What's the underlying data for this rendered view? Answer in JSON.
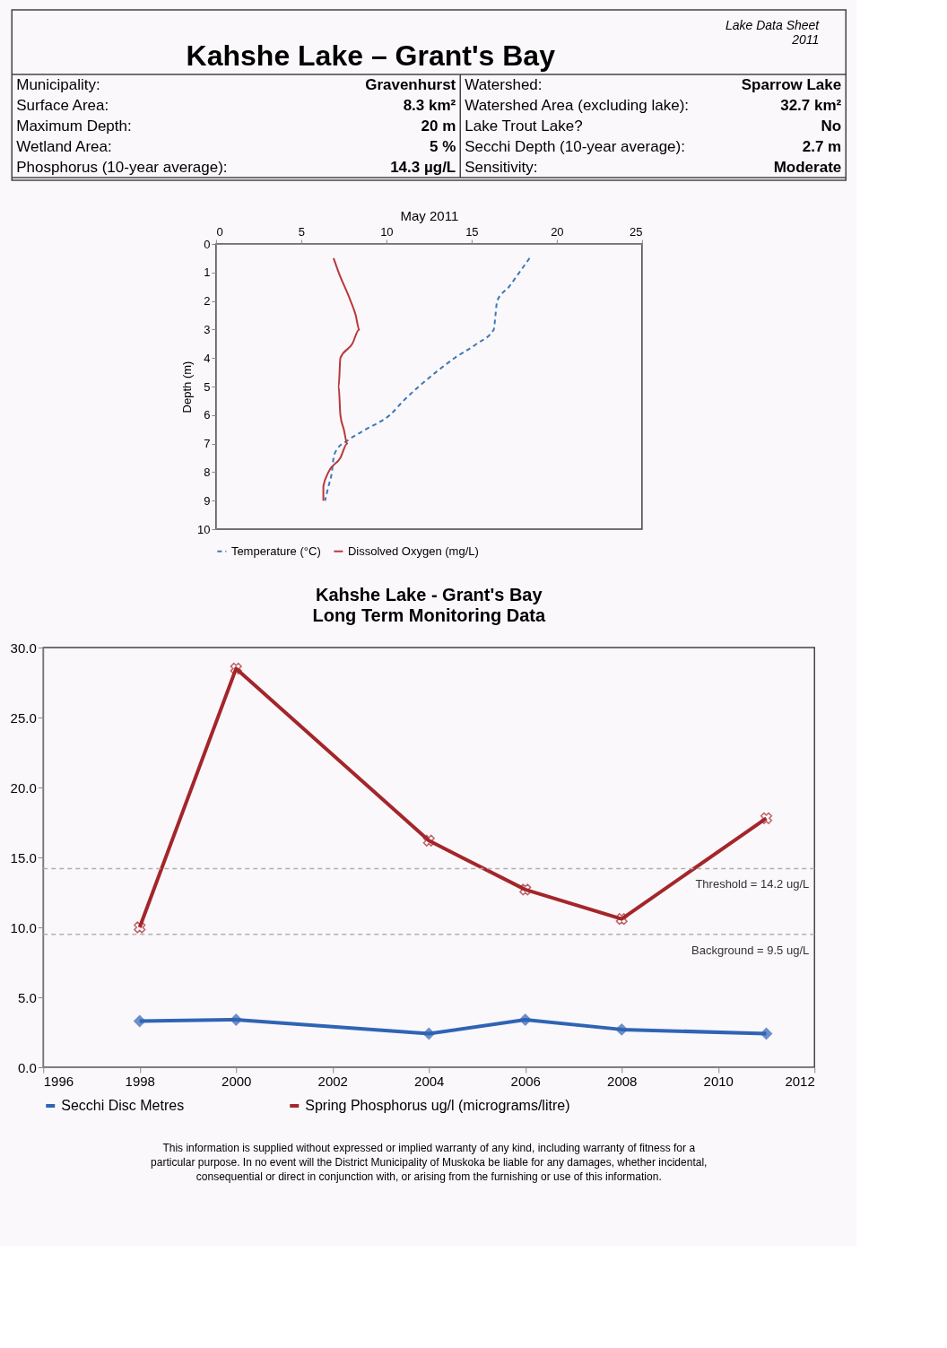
{
  "chart_data": [
    {
      "type": "other",
      "title": "Kahshe Lake – Grant's Bay",
      "annotations": [
        "Lake Data Sheet",
        "2011",
        "Municipality:",
        "Gravenhurst",
        "Watershed:",
        "Sparrow Lake",
        "Surface Area:",
        "8.3 km²",
        "Watershed Area (excluding lake):",
        "32.7 km²",
        "Maximum Depth:",
        "20 m",
        "Lake Trout Lake?",
        "No",
        "Wetland Area:",
        "5 %",
        "Secchi Depth (10-year average):",
        "2.7 m",
        "Phosphorus (10-year average):",
        "14.3 µg/L",
        "Sensitivity:",
        "Moderate"
      ]
    },
    {
      "type": "line",
      "xlabel": "May 2011",
      "ylabel": "Depth (m)",
      "xlim": [
        0,
        25
      ],
      "xticks": [
        0,
        5,
        10,
        15,
        20,
        25
      ],
      "ylim": [
        10,
        0
      ],
      "yticks": [
        0,
        1,
        2,
        3,
        4,
        5,
        6,
        7,
        8,
        9,
        10
      ],
      "grid": false,
      "legend": "bottom",
      "marker": "none",
      "series": [
        {
          "name": "Temperature (°C)",
          "color": "#3b78b8",
          "line_style": "dashed",
          "x": [
            18.4,
            17.8,
            17.2,
            16.5,
            16.4,
            16.3,
            15.3,
            14.0,
            12.9,
            11.9,
            11.0,
            10.2,
            8.8,
            7.7,
            7.1,
            6.9,
            6.8,
            6.6,
            6.4
          ],
          "values": [
            0.5,
            1,
            1.5,
            2,
            2.5,
            3,
            3.5,
            4,
            4.5,
            5,
            5.5,
            6,
            6.5,
            6.9,
            7.2,
            7.5,
            8,
            8.5,
            9
          ]
        },
        {
          "name": "Dissolved Oxygen (mg/L)",
          "color": "#b8383c",
          "line_style": "solid",
          "x": [
            6.9,
            7.2,
            7.9,
            8.2,
            8.4,
            8.0,
            7.3,
            7.2,
            7.3,
            7.5,
            7.7,
            7.3,
            6.6,
            6.3,
            6.3
          ],
          "values": [
            0.5,
            1,
            2,
            2.5,
            3,
            3.5,
            4,
            5,
            6,
            6.5,
            7,
            7.5,
            8,
            8.5,
            9
          ]
        }
      ]
    },
    {
      "type": "line",
      "title": "Kahshe Lake - Grant's Bay",
      "subtitle": "Long Term Monitoring Data",
      "x": [
        1998,
        2000,
        2004,
        2006,
        2008,
        2011
      ],
      "xlim": [
        1996,
        2012
      ],
      "xticks": [
        1996,
        1998,
        2000,
        2002,
        2004,
        2006,
        2008,
        2010,
        2012
      ],
      "ylim": [
        0,
        30
      ],
      "yticks": [
        {
          "value": 0,
          "label": "0.0"
        },
        {
          "value": 5,
          "label": "5.0"
        },
        {
          "value": 10,
          "label": "10.0"
        },
        {
          "value": 15,
          "label": "15.0"
        },
        {
          "value": 20,
          "label": "20.0"
        },
        {
          "value": 25,
          "label": "25.0"
        },
        {
          "value": 30,
          "label": "30.0"
        }
      ],
      "grid": false,
      "legend": "bottom",
      "series": [
        {
          "name": "Secchi Disc Metres",
          "color": "#2f64b5",
          "marker": "diamond",
          "values": [
            3.3,
            3.4,
            2.4,
            3.4,
            2.7,
            2.4
          ]
        },
        {
          "name": "Spring Phosphorus ug/l (micrograms/litre)",
          "color": "#a3262b",
          "marker": "cross",
          "values": [
            10.0,
            28.5,
            16.2,
            12.7,
            10.6,
            17.8
          ]
        }
      ],
      "ref_lines": [
        {
          "axis": "y",
          "value": 14.2,
          "label": "Threshold = 14.2 ug/L",
          "color": "#b0b0b0",
          "line_style": "dashed"
        },
        {
          "axis": "y",
          "value": 9.5,
          "label": "Background = 9.5 ug/L",
          "color": "#b0b0b0",
          "line_style": "dashed"
        }
      ],
      "annotations": [
        "This information is supplied without expressed or implied warranty of any kind, including warranty of fitness for a particular purpose. In no event will the District Municipality of Muskoka be liable for any damages, whether incidental, consequential or direct in conjunction with, or arising from the furnishing or use of this information."
      ]
    }
  ]
}
